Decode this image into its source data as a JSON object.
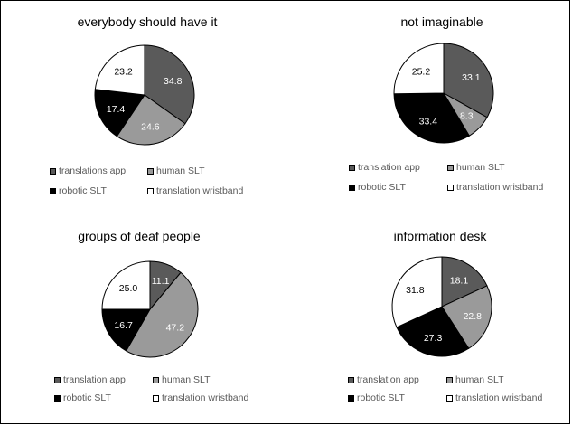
{
  "chart_data": [
    {
      "type": "pie",
      "title": "everybody should have it",
      "slices": [
        {
          "label": "translations app",
          "value": 34.8,
          "color": "#5a5a5a"
        },
        {
          "label": "human SLT",
          "value": 24.6,
          "color": "#9a9a9a"
        },
        {
          "label": "robotic SLT",
          "value": 17.4,
          "color": "#000000"
        },
        {
          "label": "translation wristband",
          "value": 23.2,
          "color": "#ffffff"
        }
      ],
      "data_label_color": [
        "#ffffff",
        "#ffffff",
        "#ffffff",
        "#000000"
      ],
      "legend": [
        "translations app",
        "human SLT",
        "robotic SLT",
        "translation wristband"
      ]
    },
    {
      "type": "pie",
      "title": "not imaginable",
      "slices": [
        {
          "label": "translation app",
          "value": 33.1,
          "color": "#5a5a5a"
        },
        {
          "label": "human SLT",
          "value": 8.3,
          "color": "#9a9a9a"
        },
        {
          "label": "robotic SLT",
          "value": 33.4,
          "color": "#000000"
        },
        {
          "label": "translation wristband",
          "value": 25.2,
          "color": "#ffffff"
        }
      ],
      "data_label_color": [
        "#ffffff",
        "#ffffff",
        "#ffffff",
        "#000000"
      ],
      "legend": [
        "translation app",
        "human SLT",
        "robotic SLT",
        "translation wristband"
      ]
    },
    {
      "type": "pie",
      "title": "groups of deaf people",
      "slices": [
        {
          "label": "translation app",
          "value": 11.1,
          "color": "#5a5a5a"
        },
        {
          "label": "human SLT",
          "value": 47.2,
          "color": "#9a9a9a"
        },
        {
          "label": "robotic SLT",
          "value": 16.7,
          "color": "#000000"
        },
        {
          "label": "translation wristband",
          "value": 25.0,
          "color": "#ffffff"
        }
      ],
      "data_label_color": [
        "#ffffff",
        "#ffffff",
        "#ffffff",
        "#000000"
      ],
      "legend": [
        "translation app",
        "human SLT",
        "robotic SLT",
        "translation wristband"
      ]
    },
    {
      "type": "pie",
      "title": "information desk",
      "slices": [
        {
          "label": "translation app",
          "value": 18.1,
          "color": "#5a5a5a"
        },
        {
          "label": "human SLT",
          "value": 22.8,
          "color": "#9a9a9a"
        },
        {
          "label": "robotic SLT",
          "value": 27.3,
          "color": "#000000"
        },
        {
          "label": "translation wristband",
          "value": 31.8,
          "color": "#ffffff"
        }
      ],
      "data_label_color": [
        "#ffffff",
        "#ffffff",
        "#ffffff",
        "#000000"
      ],
      "legend": [
        "translation app",
        "human SLT",
        "robotic SLT",
        "translation wristband"
      ]
    }
  ]
}
